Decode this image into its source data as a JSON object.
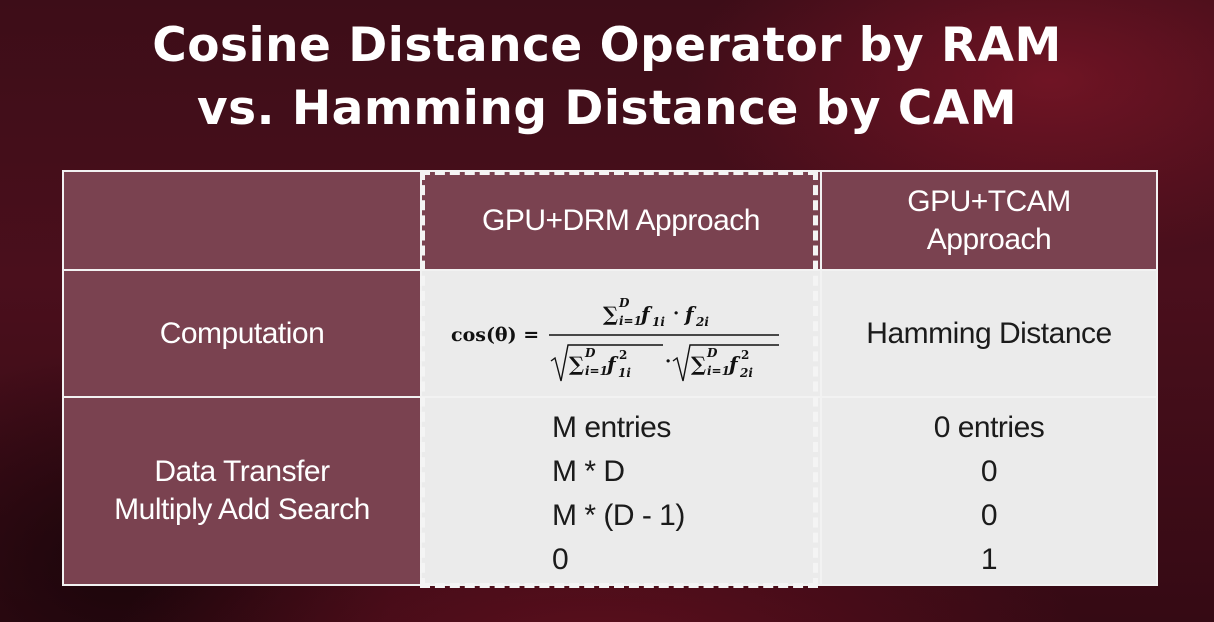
{
  "title": {
    "line1": "Cosine Distance Operator by RAM",
    "line2": "vs. Hamming Distance by CAM"
  },
  "table": {
    "headers": [
      "",
      "GPU+DRM Approach",
      "GPU+TCAM Approach"
    ],
    "header_tcam_lines": [
      "GPU+TCAM",
      "Approach"
    ],
    "rows": [
      {
        "label_lines": [
          "Computation"
        ],
        "drm": "cos(θ) = Σ_{i=1}^{D} f_{1i} · f_{2i} / ( √(Σ_{i=1}^{D} f_{1i}^2) · √(Σ_{i=1}^{D} f_{2i}^2) )",
        "tcam": [
          "Hamming Distance"
        ]
      },
      {
        "label_lines": [
          "Data Transfer",
          "Multiply Add Search"
        ],
        "drm": [
          "M entries",
          "M * D",
          "M * (D - 1)",
          "0"
        ],
        "tcam": [
          "0 entries",
          "0",
          "0",
          "1"
        ]
      }
    ]
  },
  "formula": {
    "lhs": "cos(θ) =",
    "sum": "∑",
    "sub": "i=1",
    "sup": "D",
    "f": "f",
    "sub_f1": "1i",
    "sub_f2": "2i",
    "dot": "·",
    "sq": "2",
    "sqrt": "√"
  },
  "colors": {
    "header_bg": "#7a4250",
    "body_bg": "#ebebeb",
    "border": "#f2f2f2",
    "background": "#4a0f1c"
  }
}
